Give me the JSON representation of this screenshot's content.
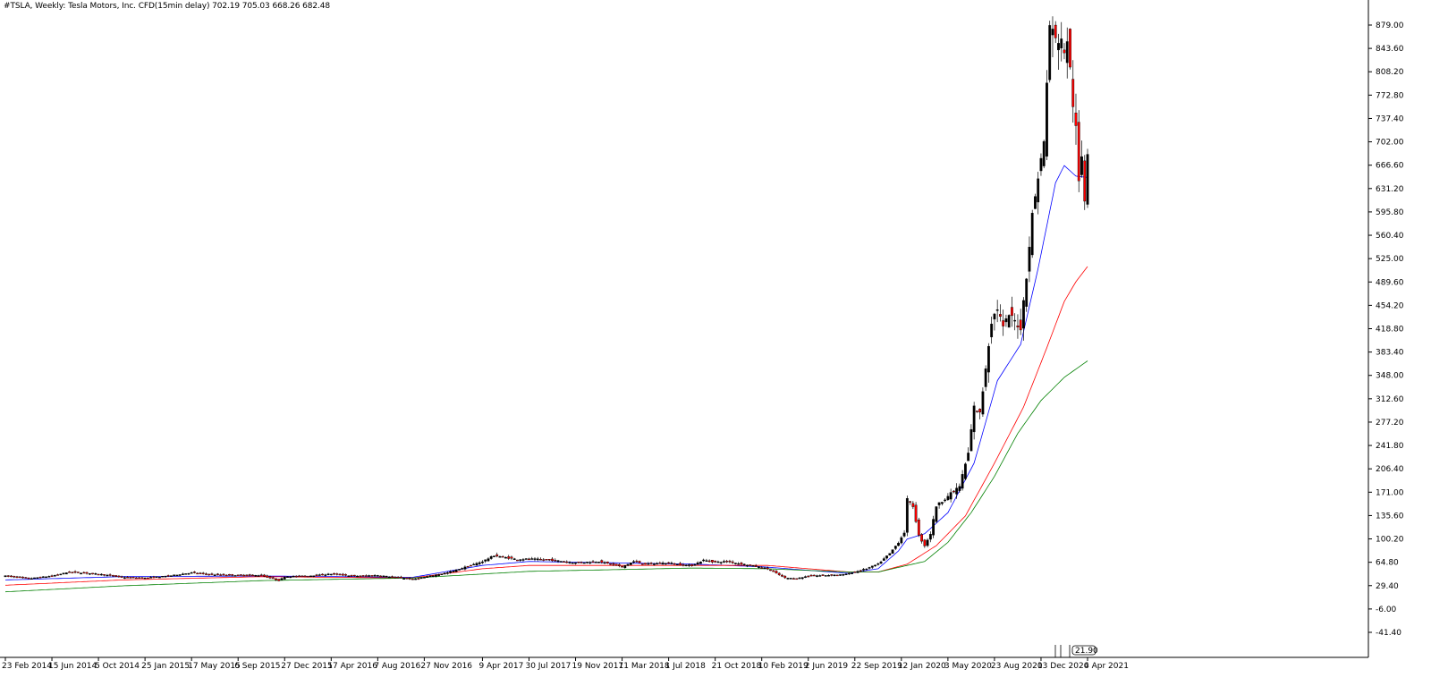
{
  "header": {
    "title": "#TSLA, Weekly:  Tesla Motors, Inc.  CFD(15min delay)  702.19 705.03 668.26 682.48"
  },
  "colors": {
    "background": "#ffffff",
    "candle_up": "#000000",
    "candle_down": "#ff0000",
    "wick": "#000000",
    "ma_fast": "#0000ff",
    "ma_mid": "#ff0000",
    "ma_slow": "#008000",
    "axis": "#000000"
  },
  "chart_data": {
    "type": "candlestick",
    "title": "#TSLA, Weekly:  Tesla Motors, Inc.  CFD(15min delay)  702.19 705.03 668.26 682.48",
    "ylim": [
      -50,
      925
    ],
    "y_ticks": [
      "879.00",
      "843.60",
      "808.20",
      "772.80",
      "737.40",
      "702.00",
      "666.60",
      "631.20",
      "595.80",
      "560.40",
      "525.00",
      "489.60",
      "454.20",
      "418.80",
      "383.40",
      "348.00",
      "312.60",
      "277.20",
      "241.80",
      "206.40",
      "171.00",
      "135.60",
      "100.20",
      "64.80",
      "29.40",
      "-6.00",
      "-41.40"
    ],
    "x_ticks": [
      "23 Feb 2014",
      "15 Jun 2014",
      "5 Oct 2014",
      "25 Jan 2015",
      "17 May 2015",
      "6 Sep 2015",
      "27 Dec 2015",
      "17 Apr 2016",
      "7 Aug 2016",
      "27 Nov 2016",
      "9 Apr 2017",
      "30 Jul 2017",
      "19 Nov 2017",
      "11 Mar 2018",
      "1 Jul 2018",
      "21 Oct 2018",
      "10 Feb 2019",
      "2 Jun 2019",
      "22 Sep 2019",
      "12 Jan 2020",
      "3 May 2020",
      "23 Aug 2020",
      "13 Dec 2020",
      "4 Apr 2021"
    ],
    "x_tick_weeks": [
      0,
      16,
      32,
      48,
      64,
      80,
      96,
      112,
      128,
      144,
      164,
      180,
      196,
      212,
      228,
      244,
      260,
      276,
      292,
      308,
      324,
      340,
      356,
      372
    ],
    "bottom_indicator_label": "21.90",
    "current_price": "682.48",
    "anchors": {
      "close": [
        [
          0,
          44
        ],
        [
          8,
          40
        ],
        [
          16,
          44
        ],
        [
          22,
          50
        ],
        [
          32,
          47
        ],
        [
          40,
          42
        ],
        [
          48,
          41
        ],
        [
          56,
          44
        ],
        [
          64,
          49
        ],
        [
          72,
          46
        ],
        [
          80,
          45
        ],
        [
          88,
          45
        ],
        [
          94,
          37
        ],
        [
          96,
          43
        ],
        [
          104,
          44
        ],
        [
          112,
          47
        ],
        [
          120,
          44
        ],
        [
          128,
          45
        ],
        [
          136,
          41
        ],
        [
          140,
          39
        ],
        [
          144,
          42
        ],
        [
          152,
          49
        ],
        [
          160,
          60
        ],
        [
          164,
          66
        ],
        [
          168,
          75
        ],
        [
          172,
          72
        ],
        [
          176,
          69
        ],
        [
          180,
          70
        ],
        [
          188,
          68
        ],
        [
          196,
          64
        ],
        [
          204,
          66
        ],
        [
          212,
          58
        ],
        [
          216,
          66
        ],
        [
          220,
          62
        ],
        [
          228,
          64
        ],
        [
          232,
          61
        ],
        [
          236,
          60
        ],
        [
          240,
          68
        ],
        [
          244,
          65
        ],
        [
          248,
          66
        ],
        [
          256,
          60
        ],
        [
          262,
          55
        ],
        [
          268,
          41
        ],
        [
          272,
          40
        ],
        [
          276,
          44
        ],
        [
          282,
          45
        ],
        [
          288,
          46
        ],
        [
          292,
          50
        ],
        [
          296,
          55
        ],
        [
          300,
          62
        ],
        [
          304,
          78
        ],
        [
          307,
          95
        ],
        [
          309,
          110
        ],
        [
          310,
          160
        ],
        [
          312,
          150
        ],
        [
          314,
          105
        ],
        [
          316,
          90
        ],
        [
          318,
          108
        ],
        [
          320,
          150
        ],
        [
          324,
          165
        ],
        [
          328,
          180
        ],
        [
          331,
          230
        ],
        [
          333,
          300
        ],
        [
          335,
          290
        ],
        [
          337,
          360
        ],
        [
          339,
          430
        ],
        [
          341,
          450
        ],
        [
          343,
          420
        ],
        [
          345,
          440
        ],
        [
          347,
          430
        ],
        [
          349,
          420
        ],
        [
          351,
          500
        ],
        [
          353,
          590
        ],
        [
          355,
          650
        ],
        [
          357,
          700
        ],
        [
          359,
          880
        ],
        [
          361,
          855
        ],
        [
          363,
          860
        ],
        [
          364,
          830
        ],
        [
          365,
          860
        ],
        [
          367,
          760
        ],
        [
          368,
          720
        ],
        [
          369,
          640
        ],
        [
          370,
          680
        ],
        [
          371,
          615
        ],
        [
          372,
          690
        ]
      ],
      "ma_fast": [
        [
          0,
          38
        ],
        [
          40,
          43
        ],
        [
          88,
          44
        ],
        [
          140,
          42
        ],
        [
          164,
          60
        ],
        [
          180,
          66
        ],
        [
          236,
          62
        ],
        [
          260,
          58
        ],
        [
          290,
          48
        ],
        [
          300,
          55
        ],
        [
          307,
          82
        ],
        [
          310,
          100
        ],
        [
          316,
          108
        ],
        [
          324,
          140
        ],
        [
          333,
          215
        ],
        [
          341,
          340
        ],
        [
          349,
          395
        ],
        [
          355,
          510
        ],
        [
          361,
          640
        ],
        [
          364,
          666
        ],
        [
          368,
          650
        ],
        [
          372,
          648
        ]
      ],
      "ma_mid": [
        [
          0,
          30
        ],
        [
          40,
          38
        ],
        [
          88,
          43
        ],
        [
          140,
          41
        ],
        [
          164,
          55
        ],
        [
          180,
          60
        ],
        [
          236,
          60
        ],
        [
          262,
          60
        ],
        [
          290,
          50
        ],
        [
          300,
          50
        ],
        [
          310,
          62
        ],
        [
          320,
          90
        ],
        [
          330,
          135
        ],
        [
          340,
          215
        ],
        [
          350,
          300
        ],
        [
          358,
          390
        ],
        [
          364,
          460
        ],
        [
          368,
          490
        ],
        [
          372,
          513
        ]
      ],
      "ma_slow": [
        [
          0,
          20
        ],
        [
          40,
          29
        ],
        [
          88,
          37
        ],
        [
          140,
          41
        ],
        [
          164,
          47
        ],
        [
          180,
          51
        ],
        [
          236,
          56
        ],
        [
          262,
          55
        ],
        [
          290,
          50
        ],
        [
          300,
          50
        ],
        [
          308,
          58
        ],
        [
          316,
          66
        ],
        [
          324,
          95
        ],
        [
          332,
          140
        ],
        [
          340,
          195
        ],
        [
          348,
          260
        ],
        [
          356,
          310
        ],
        [
          364,
          345
        ],
        [
          372,
          370
        ]
      ]
    }
  }
}
